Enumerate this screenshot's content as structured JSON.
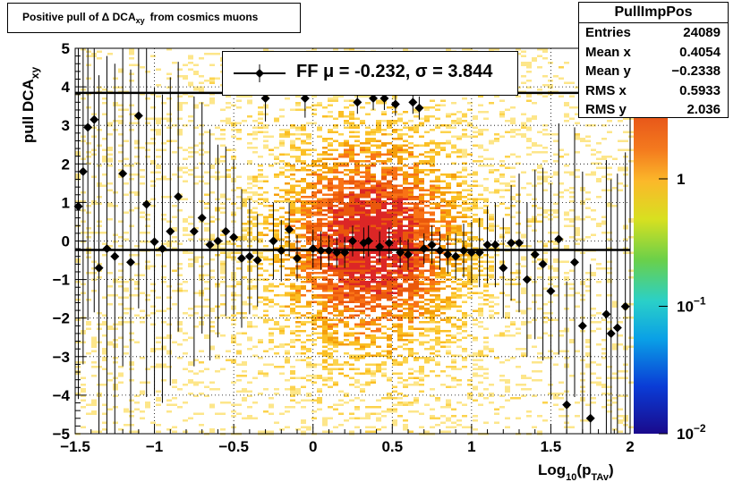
{
  "chart_data": {
    "type": "scatter",
    "title": "Positive pull of Δ DCAxy from cosmics muons",
    "title_parts": {
      "pre": "Positive pull of Δ DCA",
      "sub": "xy",
      "post": "from cosmics muons"
    },
    "ylabel": {
      "main": "pull DCA",
      "sub": "xy"
    },
    "xlabel": {
      "main": "Log",
      "sub1": "10",
      "mid": "(p",
      "sub2": "TAv",
      "post": ")"
    },
    "xlim": [
      -1.5,
      2.0
    ],
    "ylim": [
      -5,
      5
    ],
    "x_ticks": [
      {
        "v": -1.5,
        "label": "−1.5"
      },
      {
        "v": -1,
        "label": "−1"
      },
      {
        "v": -0.5,
        "label": "−0.5"
      },
      {
        "v": 0,
        "label": "0"
      },
      {
        "v": 0.5,
        "label": "0.5"
      },
      {
        "v": 1,
        "label": "1"
      },
      {
        "v": 1.5,
        "label": "1.5"
      },
      {
        "v": 2,
        "label": "2"
      }
    ],
    "y_ticks": [
      {
        "v": 5,
        "label": "5"
      },
      {
        "v": 4,
        "label": "4"
      },
      {
        "v": 3,
        "label": "3"
      },
      {
        "v": 2,
        "label": "2"
      },
      {
        "v": 1,
        "label": "1"
      },
      {
        "v": 0,
        "label": "0"
      },
      {
        "v": -1,
        "label": "−1"
      },
      {
        "v": -2,
        "label": "−2"
      },
      {
        "v": -3,
        "label": "−3"
      },
      {
        "v": -4,
        "label": "−4"
      },
      {
        "v": -5,
        "label": "−5"
      }
    ],
    "grid": true,
    "colorbar": {
      "scale": "log",
      "range": [
        0.01,
        3
      ],
      "labels": [
        {
          "v": 1,
          "base": "1",
          "exp": ""
        },
        {
          "v": 0.1,
          "base": "10",
          "exp": "−1"
        },
        {
          "v": 0.01,
          "base": "10",
          "exp": "−2"
        }
      ]
    },
    "stats": {
      "name": "PullImpPos",
      "rows": [
        {
          "label": "Entries",
          "value": "24089"
        },
        {
          "label": "Mean x",
          "value": "0.4054"
        },
        {
          "label": "Mean y",
          "value": "−0.2338"
        },
        {
          "label": "RMS x",
          "value": "0.5933"
        },
        {
          "label": "RMS y",
          "value": "2.036"
        }
      ]
    },
    "legend": {
      "text": "FF μ = -0.232, σ =   3.844",
      "placement": "top-center"
    },
    "fit_lines": [
      {
        "name": "mu",
        "y": -0.232
      },
      {
        "name": "sigma",
        "y": 3.844
      }
    ],
    "series": [
      {
        "name": "FF",
        "points": [
          {
            "x": -1.48,
            "y": 0.9,
            "e": 5
          },
          {
            "x": -1.45,
            "y": 1.8,
            "e": 5
          },
          {
            "x": -1.42,
            "y": 2.95,
            "e": 5
          },
          {
            "x": -1.38,
            "y": 3.15,
            "e": 5
          },
          {
            "x": -1.35,
            "y": -0.7,
            "e": 5
          },
          {
            "x": -1.3,
            "y": -0.2,
            "e": 5
          },
          {
            "x": -1.25,
            "y": -0.4,
            "e": 5
          },
          {
            "x": -1.2,
            "y": 1.75,
            "e": 5
          },
          {
            "x": -1.15,
            "y": -0.55,
            "e": 5
          },
          {
            "x": -1.1,
            "y": 3.25,
            "e": 5
          },
          {
            "x": -1.05,
            "y": 0.95,
            "e": 5
          },
          {
            "x": -1.0,
            "y": -0.02,
            "e": 4
          },
          {
            "x": -0.95,
            "y": -0.2,
            "e": 4
          },
          {
            "x": -0.9,
            "y": 0.25,
            "e": 4
          },
          {
            "x": -0.85,
            "y": 1.15,
            "e": 3.5
          },
          {
            "x": -0.75,
            "y": 0.25,
            "e": 3.5
          },
          {
            "x": -0.7,
            "y": 0.6,
            "e": 3
          },
          {
            "x": -0.65,
            "y": -0.1,
            "e": 3
          },
          {
            "x": -0.6,
            "y": 0.0,
            "e": 2.5
          },
          {
            "x": -0.55,
            "y": 0.25,
            "e": 2.2
          },
          {
            "x": -0.5,
            "y": 0.1,
            "e": 2
          },
          {
            "x": -0.45,
            "y": -0.45,
            "e": 1.8
          },
          {
            "x": -0.4,
            "y": -0.4,
            "e": 1.5
          },
          {
            "x": -0.35,
            "y": -0.5,
            "e": 1.2
          },
          {
            "x": -0.3,
            "y": 3.7,
            "e": 0.6
          },
          {
            "x": -0.25,
            "y": 0.0,
            "e": 1
          },
          {
            "x": -0.2,
            "y": -0.25,
            "e": 0.8
          },
          {
            "x": -0.15,
            "y": 0.3,
            "e": 0.7
          },
          {
            "x": -0.1,
            "y": -0.45,
            "e": 0.6
          },
          {
            "x": -0.05,
            "y": 3.7,
            "e": 0.5
          },
          {
            "x": 0.0,
            "y": -0.2,
            "e": 0.5
          },
          {
            "x": 0.05,
            "y": -0.25,
            "e": 0.5
          },
          {
            "x": 0.1,
            "y": -0.25,
            "e": 0.4
          },
          {
            "x": 0.15,
            "y": -0.3,
            "e": 0.4
          },
          {
            "x": 0.2,
            "y": -0.3,
            "e": 0.4
          },
          {
            "x": 0.25,
            "y": 0.0,
            "e": 0.4
          },
          {
            "x": 0.28,
            "y": 3.6,
            "e": 0.3
          },
          {
            "x": 0.32,
            "y": -0.05,
            "e": 0.4
          },
          {
            "x": 0.35,
            "y": 0.0,
            "e": 0.4
          },
          {
            "x": 0.38,
            "y": 3.7,
            "e": 0.3
          },
          {
            "x": 0.42,
            "y": -0.15,
            "e": 0.4
          },
          {
            "x": 0.45,
            "y": 3.7,
            "e": 0.3
          },
          {
            "x": 0.48,
            "y": -0.05,
            "e": 0.4
          },
          {
            "x": 0.52,
            "y": 3.55,
            "e": 0.3
          },
          {
            "x": 0.55,
            "y": -0.3,
            "e": 0.4
          },
          {
            "x": 0.6,
            "y": -0.35,
            "e": 0.4
          },
          {
            "x": 0.63,
            "y": 3.6,
            "e": 0.3
          },
          {
            "x": 0.67,
            "y": 3.45,
            "e": 0.3
          },
          {
            "x": 0.7,
            "y": -0.2,
            "e": 0.4
          },
          {
            "x": 0.75,
            "y": -0.1,
            "e": 0.5
          },
          {
            "x": 0.8,
            "y": -0.25,
            "e": 0.5
          },
          {
            "x": 0.85,
            "y": -0.35,
            "e": 0.5
          },
          {
            "x": 0.9,
            "y": -0.4,
            "e": 0.6
          },
          {
            "x": 0.95,
            "y": -0.25,
            "e": 0.7
          },
          {
            "x": 1.0,
            "y": -0.3,
            "e": 0.8
          },
          {
            "x": 1.05,
            "y": -0.3,
            "e": 0.9
          },
          {
            "x": 1.1,
            "y": -0.1,
            "e": 1
          },
          {
            "x": 1.15,
            "y": -0.1,
            "e": 1.1
          },
          {
            "x": 1.2,
            "y": -0.7,
            "e": 1.3
          },
          {
            "x": 1.25,
            "y": -0.05,
            "e": 1.5
          },
          {
            "x": 1.3,
            "y": -0.05,
            "e": 1.8
          },
          {
            "x": 1.35,
            "y": -1.0,
            "e": 2
          },
          {
            "x": 1.4,
            "y": -0.35,
            "e": 2.2
          },
          {
            "x": 1.45,
            "y": -0.6,
            "e": 2.5
          },
          {
            "x": 1.5,
            "y": -1.3,
            "e": 2.8
          },
          {
            "x": 1.55,
            "y": 0.05,
            "e": 3
          },
          {
            "x": 1.6,
            "y": -4.25,
            "e": 3.2
          },
          {
            "x": 1.65,
            "y": -0.55,
            "e": 3.5
          },
          {
            "x": 1.7,
            "y": -2.2,
            "e": 4
          },
          {
            "x": 1.75,
            "y": -4.6,
            "e": 4
          },
          {
            "x": 1.85,
            "y": -1.9,
            "e": 4
          },
          {
            "x": 1.88,
            "y": -2.4,
            "e": 4
          },
          {
            "x": 1.92,
            "y": -2.25,
            "e": 4
          },
          {
            "x": 1.97,
            "y": -1.7,
            "e": 4
          }
        ]
      }
    ]
  }
}
